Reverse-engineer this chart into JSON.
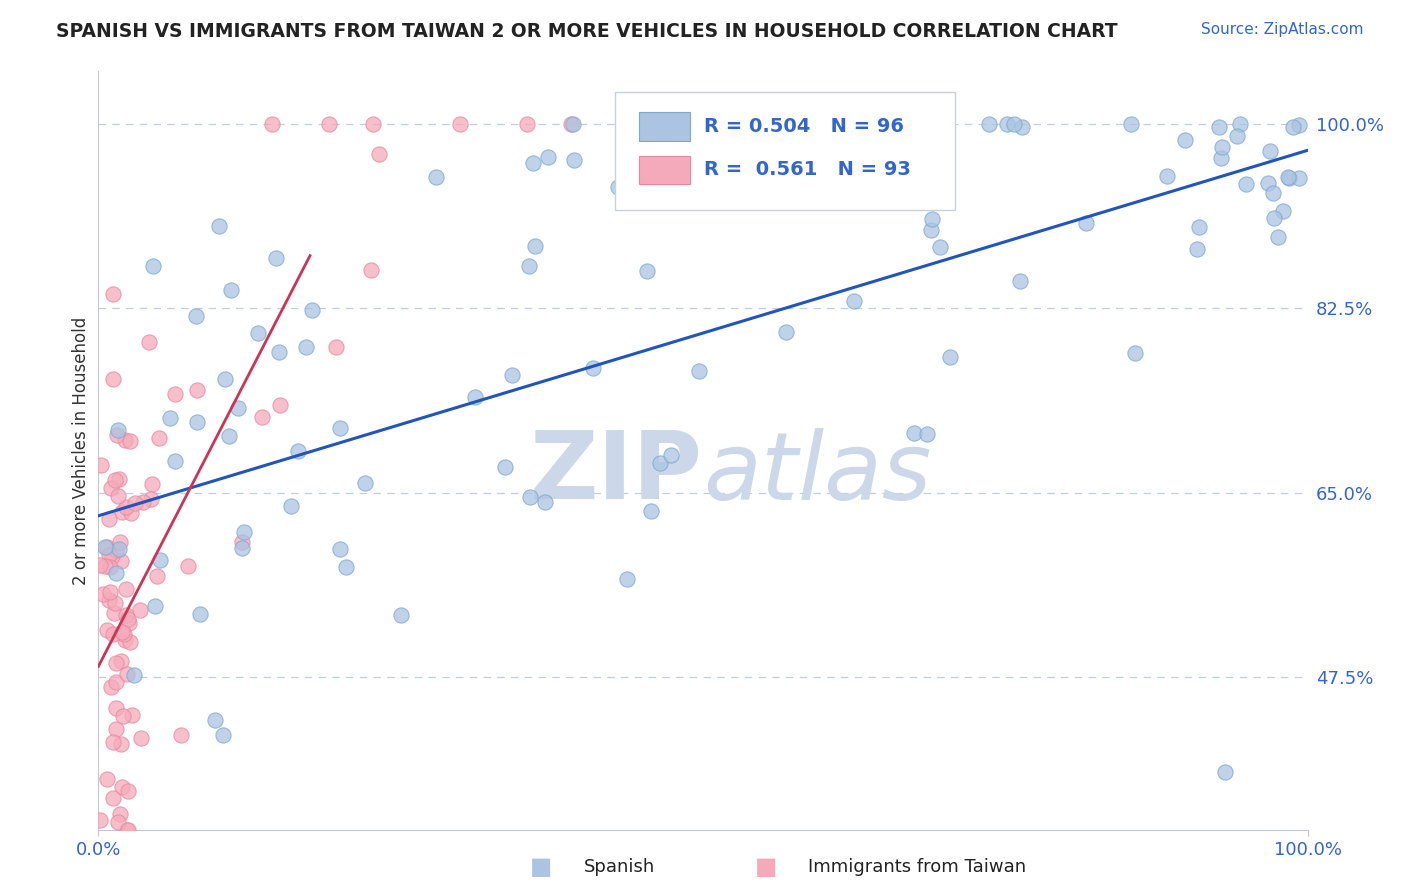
{
  "title": "SPANISH VS IMMIGRANTS FROM TAIWAN 2 OR MORE VEHICLES IN HOUSEHOLD CORRELATION CHART",
  "source_text": "Source: ZipAtlas.com",
  "ylabel": "2 or more Vehicles in Household",
  "ytick_labels": [
    "100.0%",
    "82.5%",
    "65.0%",
    "47.5%"
  ],
  "ytick_values": [
    1.0,
    0.825,
    0.65,
    0.475
  ],
  "legend_R": [
    0.504,
    0.561
  ],
  "legend_N": [
    96,
    93
  ],
  "blue_color": "#aac4e2",
  "pink_color": "#f5aabb",
  "blue_edge_color": "#7da8d0",
  "pink_edge_color": "#e888a0",
  "blue_line_color": "#2255bb",
  "pink_line_color": "#cc3355",
  "watermark_color": "#ccd8ea",
  "title_color": "#222222",
  "axis_label_color": "#3366cc",
  "legend_R_color": "#3366cc",
  "background_color": "#ffffff",
  "grid_color": "#c0cfe0",
  "blue_line_x": [
    0.0,
    1.0
  ],
  "blue_line_y": [
    0.628,
    0.975
  ],
  "pink_line_x": [
    0.0,
    0.175
  ],
  "pink_line_y": [
    0.485,
    0.875
  ],
  "xlim": [
    0.0,
    1.0
  ],
  "ylim": [
    0.33,
    1.05
  ],
  "scatter_size": 120
}
